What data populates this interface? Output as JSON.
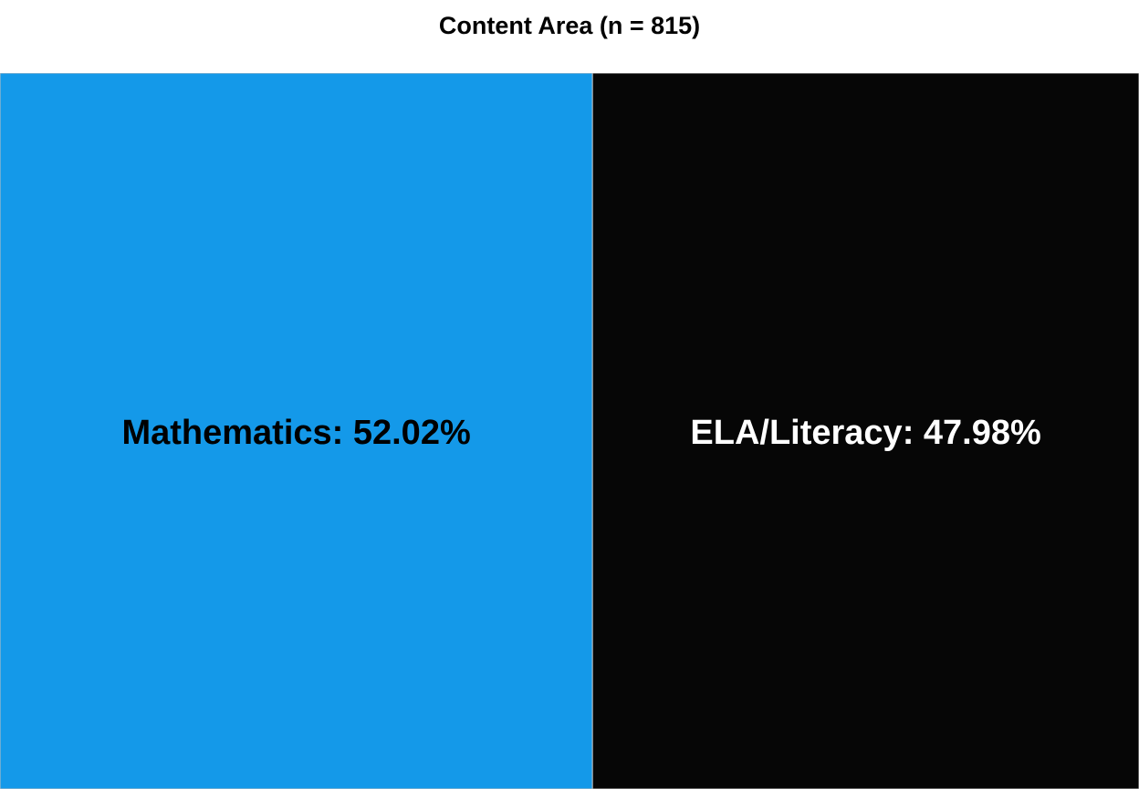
{
  "chart_data": {
    "type": "treemap",
    "title": "Content Area (n = 815)",
    "categories": [
      "Mathematics",
      "ELA/Literacy"
    ],
    "values": [
      52.02,
      47.98
    ],
    "labels": [
      "Mathematics: 52.02%",
      "ELA/Literacy: 47.98%"
    ],
    "unit": "%",
    "colors": [
      "#1499e9",
      "#060606"
    ],
    "label_colors": [
      "#000000",
      "#ffffff"
    ]
  }
}
